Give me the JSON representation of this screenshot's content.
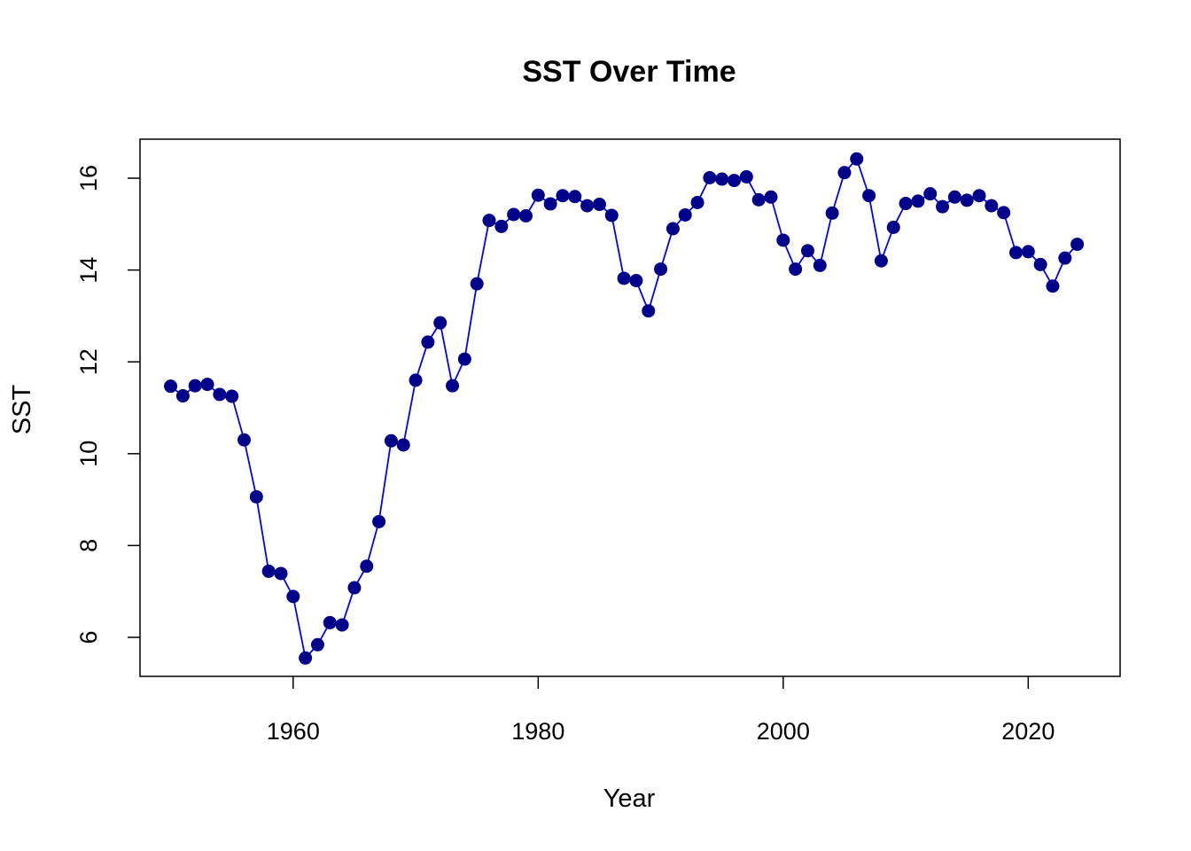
{
  "chart_data": {
    "type": "line",
    "title": "SST Over Time",
    "xlabel": "Year",
    "ylabel": "SST",
    "xlim": [
      1947.5,
      2027.5
    ],
    "ylim": [
      5.15,
      16.85
    ],
    "x_ticks": [
      1960,
      1980,
      2000,
      2020
    ],
    "y_ticks": [
      6,
      8,
      10,
      12,
      14,
      16
    ],
    "grid": false,
    "legend": "none",
    "line_color": "#0000ff",
    "point_color": "#00008b",
    "series": [
      {
        "x": [
          1950,
          1951,
          1952,
          1953,
          1954,
          1955,
          1956,
          1957,
          1958,
          1959,
          1960,
          1961,
          1962,
          1963,
          1964,
          1965,
          1966,
          1967,
          1968,
          1969,
          1970,
          1971,
          1972,
          1973,
          1974,
          1975,
          1976,
          1977,
          1978,
          1979,
          1980,
          1981,
          1982,
          1983,
          1984,
          1985,
          1986,
          1987,
          1988,
          1989,
          1990,
          1991,
          1992,
          1993,
          1994,
          1995,
          1996,
          1997,
          1998,
          1999,
          2000,
          2001,
          2002,
          2003,
          2004,
          2005,
          2006,
          2007,
          2008,
          2009,
          2010,
          2011,
          2012,
          2013,
          2014,
          2015,
          2016,
          2017,
          2018,
          2019,
          2020,
          2021,
          2022,
          2023,
          2024
        ],
        "values": [
          11.47,
          11.26,
          11.48,
          11.51,
          11.29,
          11.25,
          10.3,
          9.06,
          7.44,
          7.39,
          6.89,
          5.55,
          5.84,
          6.32,
          6.27,
          7.08,
          7.55,
          8.52,
          10.28,
          10.19,
          11.6,
          12.43,
          12.85,
          11.48,
          12.06,
          13.7,
          15.08,
          14.95,
          15.21,
          15.18,
          15.63,
          15.44,
          15.62,
          15.6,
          15.4,
          15.43,
          15.19,
          13.82,
          13.77,
          13.11,
          14.02,
          14.9,
          15.2,
          15.47,
          16.01,
          15.98,
          15.95,
          16.03,
          15.53,
          15.59,
          14.65,
          14.02,
          14.42,
          14.1,
          15.24,
          16.12,
          16.42,
          15.62,
          14.2,
          14.93,
          15.45,
          15.5,
          15.66,
          15.38,
          15.59,
          15.52,
          15.62,
          15.4,
          15.25,
          14.38,
          14.4,
          14.12,
          13.65,
          14.26,
          14.56
        ]
      }
    ]
  }
}
